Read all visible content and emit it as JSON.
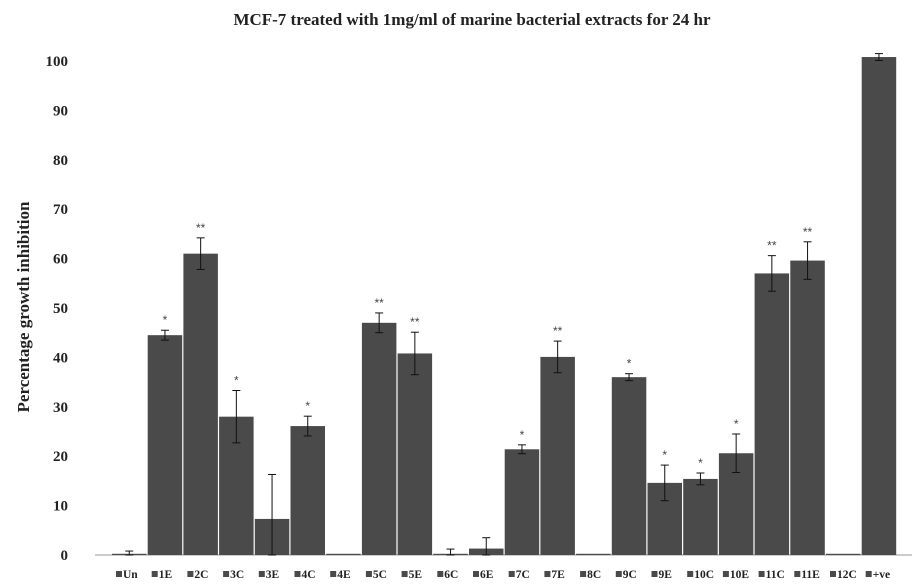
{
  "chart_data": {
    "type": "bar",
    "title": "MCF-7 treated with 1mg/ml of marine bacterial extracts for 24 hr",
    "ylabel": "Percentage growth inhibition",
    "xlabel": "",
    "ylim": [
      0,
      100
    ],
    "yticks": [
      0,
      10,
      20,
      30,
      40,
      50,
      60,
      70,
      80,
      90,
      100
    ],
    "grid": false,
    "legend": "bottom",
    "bar_color": "#4a4a4a",
    "categories": [
      "Un",
      "1E",
      "2C",
      "3C",
      "3E",
      "4C",
      "4E",
      "5C",
      "5E",
      "6C",
      "6E",
      "7C",
      "7E",
      "8C",
      "9C",
      "9E",
      "10C",
      "10E",
      "11C",
      "11E",
      "12C",
      "+ve"
    ],
    "values": [
      0,
      44.5,
      61,
      28,
      7.3,
      26.1,
      0,
      47,
      40.8,
      0,
      1.3,
      21.4,
      40.1,
      0,
      36,
      14.6,
      15.4,
      20.6,
      57,
      59.6,
      0,
      100.8
    ],
    "errors": [
      0.8,
      1,
      3.2,
      5.3,
      9,
      2,
      0,
      2,
      4.3,
      1.2,
      2.2,
      0.9,
      3.2,
      0,
      0.7,
      3.6,
      1.2,
      3.9,
      3.6,
      3.8,
      0,
      0.7
    ],
    "significance": [
      "",
      "*",
      "**",
      "*",
      "",
      "*",
      "",
      "**",
      "**",
      "",
      "",
      "*",
      "**",
      "",
      "*",
      "*",
      "*",
      "*",
      "**",
      "**",
      "",
      ""
    ]
  }
}
